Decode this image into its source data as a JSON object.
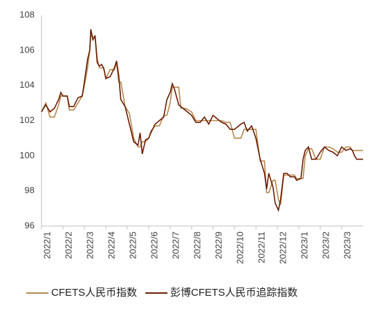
{
  "chart_data": {
    "type": "line",
    "x": [
      0,
      0.2,
      0.4,
      0.6,
      0.8,
      0.9,
      1.0,
      1.2,
      1.3,
      1.5,
      1.7,
      1.9,
      2.0,
      2.15,
      2.25,
      2.3,
      2.4,
      2.5,
      2.6,
      2.7,
      2.8,
      2.9,
      3.0,
      3.2,
      3.4,
      3.5,
      3.6,
      3.7,
      3.9,
      4.1,
      4.3,
      4.5,
      4.6,
      4.7,
      4.85,
      5.0,
      5.1,
      5.3,
      5.5,
      5.7,
      5.85,
      6.0,
      6.1,
      6.2,
      6.4,
      6.5,
      6.7,
      7.0,
      7.2,
      7.4,
      7.6,
      7.8,
      8.0,
      8.2,
      8.4,
      8.6,
      8.8,
      9.0,
      9.3,
      9.45,
      9.6,
      9.8,
      10.0,
      10.2,
      10.4,
      10.5,
      10.6,
      10.8,
      10.9,
      11.05,
      11.15,
      11.3,
      11.45,
      11.6,
      11.8,
      11.9,
      12.1,
      12.2,
      12.3,
      12.45,
      12.6,
      12.8,
      13.0,
      13.2,
      13.4,
      13.6,
      13.8,
      14.0,
      14.2,
      14.4,
      14.5,
      14.6,
      14.7,
      15.0
    ],
    "series": [
      {
        "name": "CFETS人民币指数",
        "color": "#b5874c",
        "values": [
          102.5,
          103.0,
          102.2,
          102.2,
          102.9,
          103.4,
          103.4,
          103.4,
          102.6,
          102.6,
          103.0,
          103.4,
          104.0,
          105.0,
          106.0,
          106.8,
          106.8,
          106.8,
          105.5,
          105.0,
          105.0,
          105.0,
          104.4,
          104.9,
          104.9,
          105.3,
          104.2,
          104.2,
          102.8,
          102.4,
          101.0,
          100.5,
          100.5,
          100.8,
          100.8,
          101.0,
          101.4,
          101.7,
          101.7,
          102.3,
          102.3,
          103.0,
          103.9,
          103.9,
          103.9,
          102.7,
          102.7,
          102.5,
          102.0,
          102.0,
          102.0,
          102.0,
          102.0,
          102.0,
          102.0,
          101.9,
          101.9,
          101.0,
          101.0,
          101.5,
          101.5,
          101.5,
          101.5,
          99.7,
          99.7,
          97.9,
          97.9,
          98.6,
          98.6,
          97.5,
          97.2,
          98.9,
          98.9,
          98.9,
          98.9,
          98.7,
          98.7,
          98.7,
          100.0,
          100.4,
          100.4,
          99.8,
          99.8,
          100.5,
          100.5,
          100.4,
          100.2,
          100.2,
          100.5,
          100.5,
          100.3,
          100.3,
          100.3,
          100.3
        ]
      },
      {
        "name": "彭博CFETS人民币追踪指数",
        "color": "#6b1a00",
        "values": [
          102.5,
          102.9,
          102.5,
          102.7,
          103.2,
          103.6,
          103.4,
          103.4,
          102.8,
          102.8,
          103.3,
          103.4,
          104.2,
          105.5,
          106.0,
          107.2,
          106.6,
          106.8,
          105.3,
          105.1,
          105.2,
          105.0,
          104.4,
          104.5,
          105.0,
          105.4,
          104.6,
          103.2,
          102.8,
          101.8,
          100.8,
          100.6,
          101.3,
          100.1,
          100.9,
          101.0,
          101.3,
          101.8,
          102.0,
          102.2,
          103.2,
          103.6,
          104.1,
          103.8,
          102.9,
          102.8,
          102.6,
          102.3,
          101.9,
          101.9,
          102.2,
          101.8,
          102.3,
          102.1,
          101.9,
          101.8,
          101.5,
          101.5,
          101.8,
          101.9,
          101.4,
          101.7,
          101.0,
          99.8,
          99.0,
          98.1,
          99.0,
          98.2,
          97.3,
          96.9,
          97.5,
          99.0,
          99.0,
          98.8,
          98.8,
          98.6,
          98.7,
          99.8,
          100.3,
          100.5,
          99.8,
          99.8,
          100.2,
          100.5,
          100.3,
          100.2,
          100.0,
          100.5,
          100.3,
          100.4,
          100.3,
          100.0,
          99.8,
          99.8
        ]
      }
    ],
    "xlim": [
      0,
      15
    ],
    "xticks": [
      {
        "value": 0,
        "label": "2022/1"
      },
      {
        "value": 1,
        "label": "2022/2"
      },
      {
        "value": 2,
        "label": "2022/3"
      },
      {
        "value": 3,
        "label": "2022/4"
      },
      {
        "value": 4,
        "label": "2022/5"
      },
      {
        "value": 5,
        "label": "2022/6"
      },
      {
        "value": 6,
        "label": "2022/7"
      },
      {
        "value": 7,
        "label": "2022/8"
      },
      {
        "value": 8,
        "label": "2022/9"
      },
      {
        "value": 9,
        "label": "2022/10"
      },
      {
        "value": 10,
        "label": "2022/11"
      },
      {
        "value": 11,
        "label": "2022/12"
      },
      {
        "value": 12,
        "label": "2023/1"
      },
      {
        "value": 13,
        "label": "2023/2"
      },
      {
        "value": 14,
        "label": "2023/3"
      }
    ],
    "ylim": [
      96,
      108
    ],
    "yticks": [
      96,
      98,
      100,
      102,
      104,
      106,
      108
    ],
    "grid": false,
    "legend": "bottom"
  }
}
